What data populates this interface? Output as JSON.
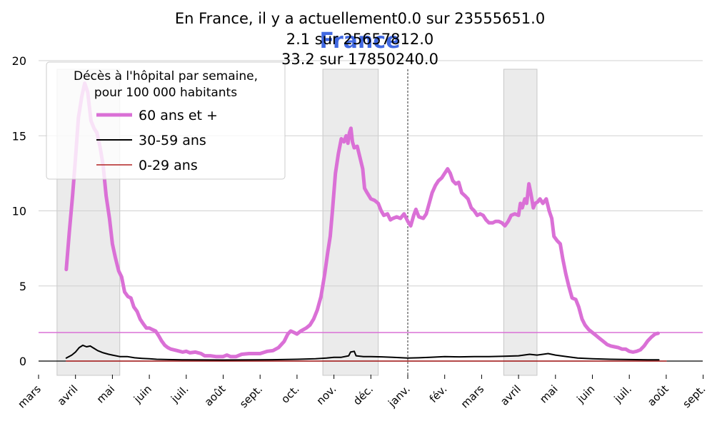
{
  "chart_data": {
    "type": "line",
    "title_lines": [
      "En France, il y a actuellement0.0 sur 23555651.0",
      "2.1 sur 25657812.0",
      "33.2 sur 17850240.0"
    ],
    "overlay_title": "France",
    "overlay_title_color": "#4169e1",
    "xlabels": [
      "mars",
      "avril",
      "mai",
      "juin",
      "juil.",
      "août",
      "sept.",
      "oct.",
      "nov.",
      "déc.",
      "janv.",
      "fév.",
      "mars",
      "avril",
      "mai",
      "juin",
      "juil.",
      "août",
      "sept."
    ],
    "x_start_month": "2020-03",
    "ylim": [
      0,
      20
    ],
    "yticks": [
      0,
      5,
      10,
      15,
      20
    ],
    "grid": "horizontal",
    "vline_month_index": 10,
    "shaded_periods": [
      [
        0.5,
        2.2
      ],
      [
        7.7,
        9.2
      ],
      [
        12.6,
        13.5
      ]
    ],
    "hline": {
      "value": 1.9,
      "color": "#da70d6"
    },
    "legend": {
      "position": "top-left",
      "title_lines": [
        "Décès à l'hôpital par semaine,",
        "pour 100 000 habitants"
      ]
    },
    "series": [
      {
        "name": "60 ans et +",
        "color": "#da70d6",
        "width": 5,
        "points": [
          [
            0.75,
            6.1
          ],
          [
            0.83,
            8.5
          ],
          [
            0.92,
            11.0
          ],
          [
            1.0,
            13.5
          ],
          [
            1.08,
            16.2
          ],
          [
            1.17,
            17.6
          ],
          [
            1.25,
            18.5
          ],
          [
            1.33,
            17.9
          ],
          [
            1.42,
            16.0
          ],
          [
            1.5,
            15.5
          ],
          [
            1.58,
            15.2
          ],
          [
            1.67,
            14.2
          ],
          [
            1.75,
            13.0
          ],
          [
            1.83,
            11.0
          ],
          [
            1.92,
            9.5
          ],
          [
            2.0,
            7.8
          ],
          [
            2.08,
            6.9
          ],
          [
            2.17,
            6.0
          ],
          [
            2.25,
            5.6
          ],
          [
            2.33,
            4.6
          ],
          [
            2.42,
            4.3
          ],
          [
            2.5,
            4.2
          ],
          [
            2.58,
            3.6
          ],
          [
            2.67,
            3.3
          ],
          [
            2.75,
            2.8
          ],
          [
            2.83,
            2.5
          ],
          [
            2.92,
            2.2
          ],
          [
            3.0,
            2.2
          ],
          [
            3.08,
            2.1
          ],
          [
            3.17,
            2.0
          ],
          [
            3.25,
            1.7
          ],
          [
            3.33,
            1.35
          ],
          [
            3.42,
            1.05
          ],
          [
            3.5,
            0.9
          ],
          [
            3.58,
            0.8
          ],
          [
            3.75,
            0.7
          ],
          [
            3.9,
            0.6
          ],
          [
            4.0,
            0.65
          ],
          [
            4.1,
            0.55
          ],
          [
            4.25,
            0.6
          ],
          [
            4.4,
            0.5
          ],
          [
            4.5,
            0.35
          ],
          [
            4.65,
            0.35
          ],
          [
            4.8,
            0.3
          ],
          [
            5.0,
            0.3
          ],
          [
            5.1,
            0.4
          ],
          [
            5.2,
            0.3
          ],
          [
            5.35,
            0.3
          ],
          [
            5.5,
            0.45
          ],
          [
            5.7,
            0.5
          ],
          [
            5.9,
            0.5
          ],
          [
            6.0,
            0.5
          ],
          [
            6.2,
            0.65
          ],
          [
            6.35,
            0.7
          ],
          [
            6.5,
            0.9
          ],
          [
            6.65,
            1.3
          ],
          [
            6.75,
            1.8
          ],
          [
            6.83,
            2.0
          ],
          [
            6.92,
            1.9
          ],
          [
            7.0,
            1.8
          ],
          [
            7.1,
            2.0
          ],
          [
            7.25,
            2.2
          ],
          [
            7.35,
            2.4
          ],
          [
            7.45,
            2.8
          ],
          [
            7.55,
            3.4
          ],
          [
            7.65,
            4.3
          ],
          [
            7.75,
            5.8
          ],
          [
            7.83,
            7.2
          ],
          [
            7.9,
            8.3
          ],
          [
            7.96,
            10.0
          ],
          [
            8.04,
            12.5
          ],
          [
            8.12,
            13.8
          ],
          [
            8.2,
            14.8
          ],
          [
            8.27,
            14.6
          ],
          [
            8.33,
            15.0
          ],
          [
            8.38,
            14.5
          ],
          [
            8.42,
            15.2
          ],
          [
            8.46,
            15.5
          ],
          [
            8.5,
            14.6
          ],
          [
            8.55,
            14.2
          ],
          [
            8.63,
            14.3
          ],
          [
            8.7,
            13.6
          ],
          [
            8.78,
            12.8
          ],
          [
            8.83,
            11.5
          ],
          [
            8.9,
            11.2
          ],
          [
            9.0,
            10.8
          ],
          [
            9.1,
            10.7
          ],
          [
            9.2,
            10.5
          ],
          [
            9.28,
            10.0
          ],
          [
            9.35,
            9.7
          ],
          [
            9.45,
            9.8
          ],
          [
            9.53,
            9.4
          ],
          [
            9.6,
            9.5
          ],
          [
            9.7,
            9.6
          ],
          [
            9.8,
            9.5
          ],
          [
            9.9,
            9.8
          ],
          [
            10.0,
            9.3
          ],
          [
            10.08,
            9.0
          ],
          [
            10.16,
            9.7
          ],
          [
            10.22,
            10.1
          ],
          [
            10.3,
            9.6
          ],
          [
            10.42,
            9.5
          ],
          [
            10.5,
            9.8
          ],
          [
            10.58,
            10.5
          ],
          [
            10.66,
            11.2
          ],
          [
            10.75,
            11.7
          ],
          [
            10.83,
            12.0
          ],
          [
            10.92,
            12.2
          ],
          [
            11.0,
            12.5
          ],
          [
            11.08,
            12.8
          ],
          [
            11.15,
            12.5
          ],
          [
            11.22,
            12.0
          ],
          [
            11.3,
            11.8
          ],
          [
            11.38,
            11.9
          ],
          [
            11.46,
            11.2
          ],
          [
            11.55,
            11.0
          ],
          [
            11.63,
            10.8
          ],
          [
            11.72,
            10.2
          ],
          [
            11.8,
            10.0
          ],
          [
            11.88,
            9.7
          ],
          [
            11.96,
            9.8
          ],
          [
            12.04,
            9.7
          ],
          [
            12.12,
            9.4
          ],
          [
            12.2,
            9.2
          ],
          [
            12.3,
            9.2
          ],
          [
            12.38,
            9.3
          ],
          [
            12.46,
            9.3
          ],
          [
            12.55,
            9.2
          ],
          [
            12.63,
            9.0
          ],
          [
            12.72,
            9.3
          ],
          [
            12.8,
            9.7
          ],
          [
            12.9,
            9.8
          ],
          [
            13.0,
            9.7
          ],
          [
            13.05,
            10.5
          ],
          [
            13.1,
            10.2
          ],
          [
            13.17,
            10.8
          ],
          [
            13.22,
            10.5
          ],
          [
            13.28,
            11.8
          ],
          [
            13.33,
            11.2
          ],
          [
            13.4,
            10.2
          ],
          [
            13.45,
            10.5
          ],
          [
            13.52,
            10.6
          ],
          [
            13.58,
            10.8
          ],
          [
            13.66,
            10.5
          ],
          [
            13.75,
            10.8
          ],
          [
            13.83,
            10.0
          ],
          [
            13.9,
            9.5
          ],
          [
            13.96,
            8.3
          ],
          [
            14.05,
            8.0
          ],
          [
            14.13,
            7.8
          ],
          [
            14.2,
            6.8
          ],
          [
            14.28,
            5.8
          ],
          [
            14.36,
            5.0
          ],
          [
            14.45,
            4.2
          ],
          [
            14.55,
            4.1
          ],
          [
            14.63,
            3.6
          ],
          [
            14.72,
            2.8
          ],
          [
            14.8,
            2.4
          ],
          [
            14.9,
            2.1
          ],
          [
            15.0,
            1.9
          ],
          [
            15.1,
            1.7
          ],
          [
            15.2,
            1.5
          ],
          [
            15.3,
            1.3
          ],
          [
            15.4,
            1.1
          ],
          [
            15.5,
            1.0
          ],
          [
            15.6,
            0.95
          ],
          [
            15.7,
            0.9
          ],
          [
            15.8,
            0.8
          ],
          [
            15.9,
            0.8
          ],
          [
            16.0,
            0.65
          ],
          [
            16.1,
            0.6
          ],
          [
            16.2,
            0.65
          ],
          [
            16.3,
            0.75
          ],
          [
            16.4,
            1.0
          ],
          [
            16.5,
            1.35
          ],
          [
            16.6,
            1.6
          ],
          [
            16.7,
            1.8
          ],
          [
            16.78,
            1.85
          ]
        ]
      },
      {
        "name": "30-59 ans",
        "color": "#000000",
        "width": 2,
        "points": [
          [
            0.75,
            0.2
          ],
          [
            0.9,
            0.4
          ],
          [
            1.0,
            0.6
          ],
          [
            1.1,
            0.9
          ],
          [
            1.2,
            1.05
          ],
          [
            1.3,
            0.95
          ],
          [
            1.4,
            1.0
          ],
          [
            1.5,
            0.85
          ],
          [
            1.6,
            0.7
          ],
          [
            1.75,
            0.55
          ],
          [
            1.9,
            0.45
          ],
          [
            2.0,
            0.4
          ],
          [
            2.2,
            0.3
          ],
          [
            2.4,
            0.3
          ],
          [
            2.6,
            0.22
          ],
          [
            2.8,
            0.18
          ],
          [
            3.0,
            0.15
          ],
          [
            3.2,
            0.12
          ],
          [
            3.5,
            0.1
          ],
          [
            4.0,
            0.08
          ],
          [
            5.0,
            0.07
          ],
          [
            6.0,
            0.08
          ],
          [
            6.6,
            0.1
          ],
          [
            7.0,
            0.12
          ],
          [
            7.5,
            0.15
          ],
          [
            7.8,
            0.2
          ],
          [
            8.0,
            0.25
          ],
          [
            8.2,
            0.25
          ],
          [
            8.4,
            0.35
          ],
          [
            8.45,
            0.6
          ],
          [
            8.55,
            0.65
          ],
          [
            8.6,
            0.35
          ],
          [
            8.8,
            0.3
          ],
          [
            9.0,
            0.3
          ],
          [
            9.3,
            0.28
          ],
          [
            9.6,
            0.25
          ],
          [
            10.0,
            0.2
          ],
          [
            10.3,
            0.22
          ],
          [
            10.6,
            0.25
          ],
          [
            11.0,
            0.3
          ],
          [
            11.4,
            0.28
          ],
          [
            11.8,
            0.3
          ],
          [
            12.2,
            0.3
          ],
          [
            12.6,
            0.32
          ],
          [
            13.0,
            0.35
          ],
          [
            13.3,
            0.45
          ],
          [
            13.5,
            0.4
          ],
          [
            13.8,
            0.5
          ],
          [
            14.0,
            0.4
          ],
          [
            14.3,
            0.3
          ],
          [
            14.6,
            0.2
          ],
          [
            15.0,
            0.15
          ],
          [
            15.5,
            0.12
          ],
          [
            16.0,
            0.1
          ],
          [
            16.5,
            0.08
          ],
          [
            16.8,
            0.08
          ]
        ]
      },
      {
        "name": "0-29 ans",
        "color": "#b22222",
        "width": 1.5,
        "points": [
          [
            0.75,
            0.0
          ],
          [
            17.0,
            0.0
          ]
        ]
      }
    ]
  }
}
